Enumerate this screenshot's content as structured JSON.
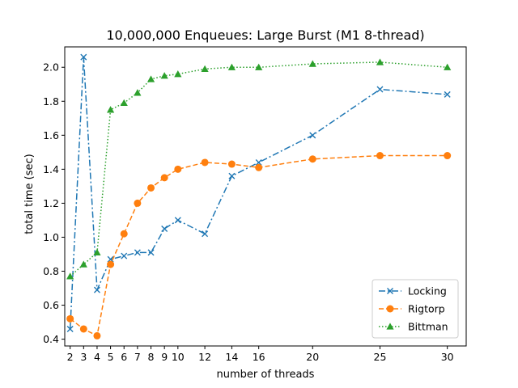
{
  "chart_data": {
    "type": "line",
    "title": "10,000,000 Enqueues: Large Burst (M1 8-thread)",
    "xlabel": "number of threads",
    "ylabel": "total time (sec)",
    "xlim": [
      1.6,
      31.4
    ],
    "ylim": [
      0.36,
      2.12
    ],
    "xticks": [
      2,
      3,
      4,
      5,
      6,
      7,
      8,
      9,
      10,
      12,
      14,
      16,
      20,
      25,
      30
    ],
    "yticks": [
      0.4,
      0.6,
      0.8,
      1.0,
      1.2,
      1.4,
      1.6,
      1.8,
      2.0
    ],
    "ytick_labels": [
      "0.4",
      "0.6",
      "0.8",
      "1.0",
      "1.2",
      "1.4",
      "1.6",
      "1.8",
      "2.0"
    ],
    "legend_position": "lower-right",
    "x": [
      2,
      3,
      4,
      5,
      6,
      7,
      8,
      9,
      10,
      12,
      14,
      16,
      20,
      25,
      30
    ],
    "series": [
      {
        "name": "Locking",
        "color": "#1f77b4",
        "marker": "x",
        "linestyle": "dashdot",
        "values": [
          0.46,
          2.06,
          0.69,
          0.87,
          0.89,
          0.91,
          0.91,
          1.05,
          1.1,
          1.02,
          1.36,
          1.44,
          1.6,
          1.87,
          1.84
        ]
      },
      {
        "name": "Rigtorp",
        "color": "#ff7f0e",
        "marker": "circle",
        "linestyle": "dashed",
        "values": [
          0.52,
          0.46,
          0.42,
          0.84,
          1.02,
          1.2,
          1.29,
          1.35,
          1.4,
          1.44,
          1.43,
          1.41,
          1.46,
          1.48,
          1.48
        ]
      },
      {
        "name": "Bittman",
        "color": "#2ca02c",
        "marker": "triangle",
        "linestyle": "dotted",
        "values": [
          0.77,
          0.84,
          0.91,
          1.75,
          1.79,
          1.85,
          1.93,
          1.95,
          1.96,
          1.99,
          2.0,
          2.0,
          2.02,
          2.03,
          2.0
        ]
      }
    ]
  }
}
